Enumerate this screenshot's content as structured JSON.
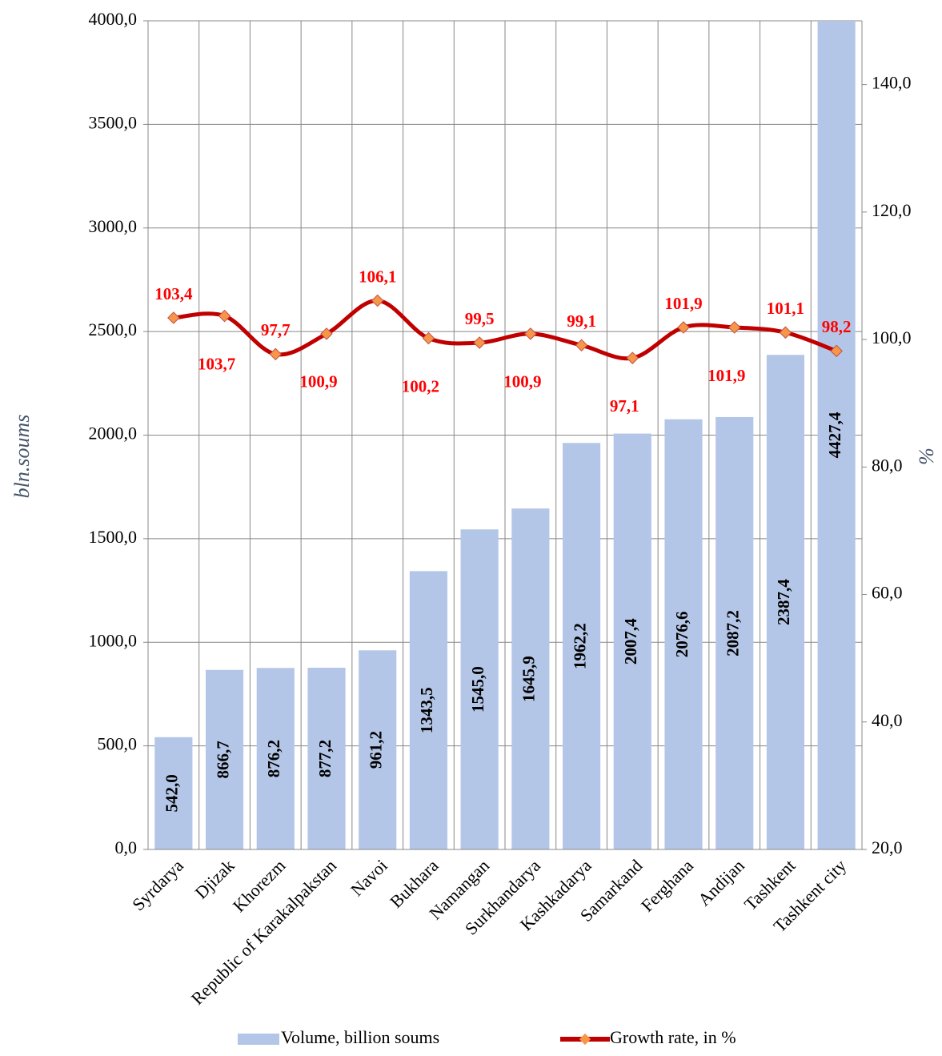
{
  "chart_data": {
    "type": "bar-line",
    "categories": [
      "Syrdarya",
      "Djizak",
      "Khorezm",
      "Republic of Karakalpakstan",
      "Navoi",
      "Bukhara",
      "Namangan",
      "Surkhandarya",
      "Kashkadarya",
      "Samarkand",
      "Ferghana",
      "Andijan",
      "Tashkent",
      "Tashkent city"
    ],
    "series": [
      {
        "name": "Volume, billion soums",
        "type": "bar",
        "color": "#b4c6e7",
        "values": [
          542.0,
          866.7,
          876.2,
          877.2,
          961.2,
          1343.5,
          1545.0,
          1645.9,
          1962.2,
          2007.4,
          2076.6,
          2087.2,
          2387.4,
          4427.4
        ],
        "value_labels": [
          "542,0",
          "866,7",
          "876,2",
          "877,2",
          "961,2",
          "1343,5",
          "1545,0",
          "1645,9",
          "1962,2",
          "2007,4",
          "2076,6",
          "2087,2",
          "2387,4",
          "4427,4"
        ]
      },
      {
        "name": "Growth rate, in %",
        "type": "line",
        "axis": "y2",
        "color": "#c00000",
        "marker_color": "#f79646",
        "values": [
          103.4,
          103.7,
          97.7,
          100.9,
          106.1,
          100.2,
          99.5,
          100.9,
          99.1,
          97.1,
          101.9,
          101.9,
          101.1,
          98.2
        ],
        "value_labels": [
          "103,4",
          "103,7",
          "97,7",
          "100,9",
          "106,1",
          "100,2",
          "99,5",
          "100,9",
          "99,1",
          "97,1",
          "101,9",
          "101,9",
          "101,1",
          "98,2"
        ]
      }
    ],
    "ylabel": "bln.soums",
    "y2label": "%",
    "ylim": [
      0,
      4000
    ],
    "yticks": [
      {
        "value": 0,
        "label": "0,0"
      },
      {
        "value": 500,
        "label": "500,0"
      },
      {
        "value": 1000,
        "label": "1000,0"
      },
      {
        "value": 1500,
        "label": "1500,0"
      },
      {
        "value": 2000,
        "label": "2000,0"
      },
      {
        "value": 2500,
        "label": "2500,0"
      },
      {
        "value": 3000,
        "label": "3000,0"
      },
      {
        "value": 3500,
        "label": "3500,0"
      },
      {
        "value": 4000,
        "label": "4000,0"
      }
    ],
    "y2lim": [
      20,
      150
    ],
    "y2ticks": [
      {
        "value": 20,
        "label": "20,0"
      },
      {
        "value": 40,
        "label": "40,0"
      },
      {
        "value": 60,
        "label": "60,0"
      },
      {
        "value": 80,
        "label": "80,0"
      },
      {
        "value": 100,
        "label": "100,0"
      },
      {
        "value": 120,
        "label": "120,0"
      },
      {
        "value": 140,
        "label": "140,0"
      }
    ],
    "grid": true,
    "legend": "bottom"
  }
}
